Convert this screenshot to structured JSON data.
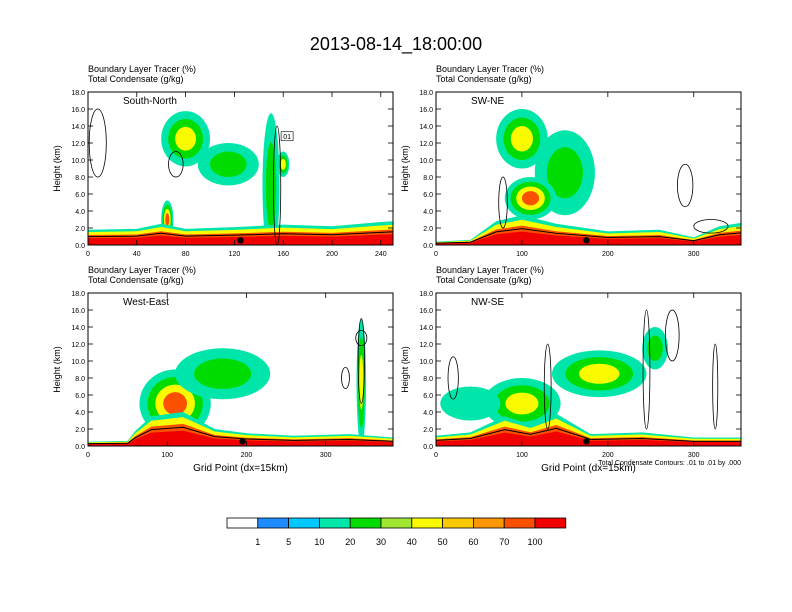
{
  "page_title": "2013-08-14_18:00:00",
  "chart_data": [
    {
      "type": "heatmap",
      "panel_label": "South-North",
      "subtitle_line1": "Boundary Layer Tracer   (%)",
      "subtitle_line2": "Total Condensate   (g/kg)",
      "ylabel": "Height (km)",
      "xlabel": "",
      "ylim": [
        0,
        18
      ],
      "xlim": [
        0,
        250
      ],
      "yticks": [
        "0.0",
        "2.0",
        "4.0",
        "6.0",
        "8.0",
        "10.0",
        "12.0",
        "14.0",
        "16.0",
        "18.0"
      ],
      "xticks": [
        {
          "v": 0,
          "label": "0"
        },
        {
          "v": 40,
          "label": "40"
        },
        {
          "v": 80,
          "label": "80"
        },
        {
          "v": 120,
          "label": "120"
        },
        {
          "v": 160,
          "label": "160"
        },
        {
          "v": 200,
          "label": "200"
        },
        {
          "v": 240,
          "label": "240"
        }
      ],
      "surface_marker_x": 125,
      "contour_label": "01",
      "boundary_layer": [
        [
          0,
          1.8
        ],
        [
          40,
          1.9
        ],
        [
          60,
          2.5
        ],
        [
          80,
          1.9
        ],
        [
          120,
          2.1
        ],
        [
          160,
          2.4
        ],
        [
          200,
          2.2
        ],
        [
          240,
          2.7
        ],
        [
          250,
          2.8
        ]
      ],
      "plumes": [
        {
          "x": 65,
          "y": 3.0,
          "w": 10,
          "h": 4.5,
          "level": 80
        },
        {
          "x": 80,
          "y": 12.5,
          "w": 40,
          "h": 6.5,
          "level": 50
        },
        {
          "x": 115,
          "y": 9.5,
          "w": 50,
          "h": 5,
          "level": 30
        },
        {
          "x": 150,
          "y": 7,
          "w": 14,
          "h": 17,
          "level": 30
        },
        {
          "x": 160,
          "y": 9.5,
          "w": 10,
          "h": 3,
          "level": 40
        }
      ],
      "contours": [
        {
          "x": 8,
          "y": 12.0,
          "w": 14,
          "h": 8
        },
        {
          "x": 155,
          "y": 7,
          "w": 6,
          "h": 14
        },
        {
          "x": 72,
          "y": 9.5,
          "w": 12,
          "h": 3
        }
      ]
    },
    {
      "type": "heatmap",
      "panel_label": "SW-NE",
      "subtitle_line1": "Boundary Layer Tracer   (%)",
      "subtitle_line2": "Total Condensate   (g/kg)",
      "ylabel": "Height (km)",
      "xlabel": "",
      "ylim": [
        0,
        18
      ],
      "xlim": [
        0,
        355
      ],
      "yticks": [
        "0.0",
        "2.0",
        "4.0",
        "6.0",
        "8.0",
        "10.0",
        "12.0",
        "14.0",
        "16.0",
        "18.0"
      ],
      "xticks": [
        {
          "v": 0,
          "label": "0"
        },
        {
          "v": 100,
          "label": "100"
        },
        {
          "v": 200,
          "label": "200"
        },
        {
          "v": 300,
          "label": "300"
        }
      ],
      "surface_marker_x": 175,
      "contour_label": "",
      "boundary_layer": [
        [
          0,
          0.4
        ],
        [
          40,
          0.6
        ],
        [
          70,
          2.8
        ],
        [
          100,
          3.5
        ],
        [
          140,
          2.5
        ],
        [
          200,
          1.6
        ],
        [
          260,
          1.8
        ],
        [
          300,
          0.9
        ],
        [
          330,
          2.2
        ],
        [
          355,
          2.6
        ]
      ],
      "plumes": [
        {
          "x": 100,
          "y": 12.5,
          "w": 60,
          "h": 7,
          "level": 40
        },
        {
          "x": 150,
          "y": 8.5,
          "w": 70,
          "h": 10,
          "level": 30
        },
        {
          "x": 110,
          "y": 5.5,
          "w": 60,
          "h": 5,
          "level": 70
        }
      ],
      "contours": [
        {
          "x": 290,
          "y": 7.0,
          "w": 18,
          "h": 5
        },
        {
          "x": 78,
          "y": 5.0,
          "w": 10,
          "h": 6
        },
        {
          "x": 320,
          "y": 2.2,
          "w": 40,
          "h": 1.6
        }
      ]
    },
    {
      "type": "heatmap",
      "panel_label": "West-East",
      "subtitle_line1": "Boundary Layer Tracer   (%)",
      "subtitle_line2": "Total Condensate   (g/kg)",
      "ylabel": "Height (km)",
      "xlabel": "Grid Point (dx=15km)",
      "ylim": [
        0,
        18
      ],
      "xlim": [
        0,
        385
      ],
      "yticks": [
        "0.0",
        "2.0",
        "4.0",
        "6.0",
        "8.0",
        "10.0",
        "12.0",
        "14.0",
        "16.0",
        "18.0"
      ],
      "xticks": [
        {
          "v": 0,
          "label": "0"
        },
        {
          "v": 100,
          "label": "100"
        },
        {
          "v": 200,
          "label": "200"
        },
        {
          "v": 300,
          "label": "300"
        }
      ],
      "surface_marker_x": 195,
      "contour_label": "",
      "boundary_layer": [
        [
          0,
          0.5
        ],
        [
          50,
          0.6
        ],
        [
          60,
          1.8
        ],
        [
          80,
          3.5
        ],
        [
          120,
          4.0
        ],
        [
          160,
          2.0
        ],
        [
          200,
          1.5
        ],
        [
          260,
          1.2
        ],
        [
          330,
          1.4
        ],
        [
          385,
          1.0
        ]
      ],
      "plumes": [
        {
          "x": 110,
          "y": 5.0,
          "w": 90,
          "h": 8,
          "level": 70
        },
        {
          "x": 170,
          "y": 8.5,
          "w": 120,
          "h": 6,
          "level": 30
        },
        {
          "x": 345,
          "y": 7.5,
          "w": 12,
          "h": 15,
          "level": 40
        }
      ],
      "contours": [
        {
          "x": 345,
          "y": 10.0,
          "w": 8,
          "h": 10
        },
        {
          "x": 325,
          "y": 8.0,
          "w": 10,
          "h": 2.5
        },
        {
          "x": 345,
          "y": 12.7,
          "w": 14,
          "h": 1.8
        }
      ]
    },
    {
      "type": "heatmap",
      "panel_label": "NW-SE",
      "subtitle_line1": "Boundary Layer Tracer   (%)",
      "subtitle_line2": "Total Condensate   (g/kg)",
      "ylabel": "Height (km)",
      "xlabel": "Grid Point (dx=15km)",
      "ylim": [
        0,
        18
      ],
      "xlim": [
        0,
        355
      ],
      "yticks": [
        "0.0",
        "2.0",
        "4.0",
        "6.0",
        "8.0",
        "10.0",
        "12.0",
        "14.0",
        "16.0",
        "18.0"
      ],
      "xticks": [
        {
          "v": 0,
          "label": "0"
        },
        {
          "v": 100,
          "label": "100"
        },
        {
          "v": 200,
          "label": "200"
        },
        {
          "v": 300,
          "label": "300"
        }
      ],
      "surface_marker_x": 175,
      "contour_label": "",
      "note": "Total Condensate Contours: .01 to .01 by .000",
      "boundary_layer": [
        [
          0,
          1.2
        ],
        [
          40,
          1.6
        ],
        [
          80,
          3.5
        ],
        [
          110,
          2.5
        ],
        [
          140,
          3.8
        ],
        [
          180,
          1.4
        ],
        [
          240,
          1.6
        ],
        [
          300,
          1.0
        ],
        [
          355,
          1.0
        ]
      ],
      "plumes": [
        {
          "x": 190,
          "y": 8.5,
          "w": 110,
          "h": 5.5,
          "level": 40
        },
        {
          "x": 255,
          "y": 11.5,
          "w": 30,
          "h": 5,
          "level": 20
        },
        {
          "x": 100,
          "y": 5.0,
          "w": 90,
          "h": 6,
          "level": 60
        },
        {
          "x": 40,
          "y": 5.0,
          "w": 70,
          "h": 4,
          "level": 10
        }
      ],
      "contours": [
        {
          "x": 275,
          "y": 13.0,
          "w": 16,
          "h": 6
        },
        {
          "x": 130,
          "y": 7.0,
          "w": 8,
          "h": 10
        },
        {
          "x": 325,
          "y": 7.0,
          "w": 6,
          "h": 10
        },
        {
          "x": 20,
          "y": 8.0,
          "w": 12,
          "h": 5
        },
        {
          "x": 245,
          "y": 9.0,
          "w": 8,
          "h": 14
        }
      ]
    }
  ],
  "colorbar": {
    "labels": [
      "1",
      "5",
      "10",
      "20",
      "30",
      "40",
      "50",
      "60",
      "70",
      "100"
    ],
    "colors": [
      "#ffffff",
      "#1e8cff",
      "#00c8ff",
      "#00e6aa",
      "#00dc00",
      "#a0e632",
      "#fafa00",
      "#fac800",
      "#fa9600",
      "#fa5000",
      "#f00000"
    ]
  }
}
